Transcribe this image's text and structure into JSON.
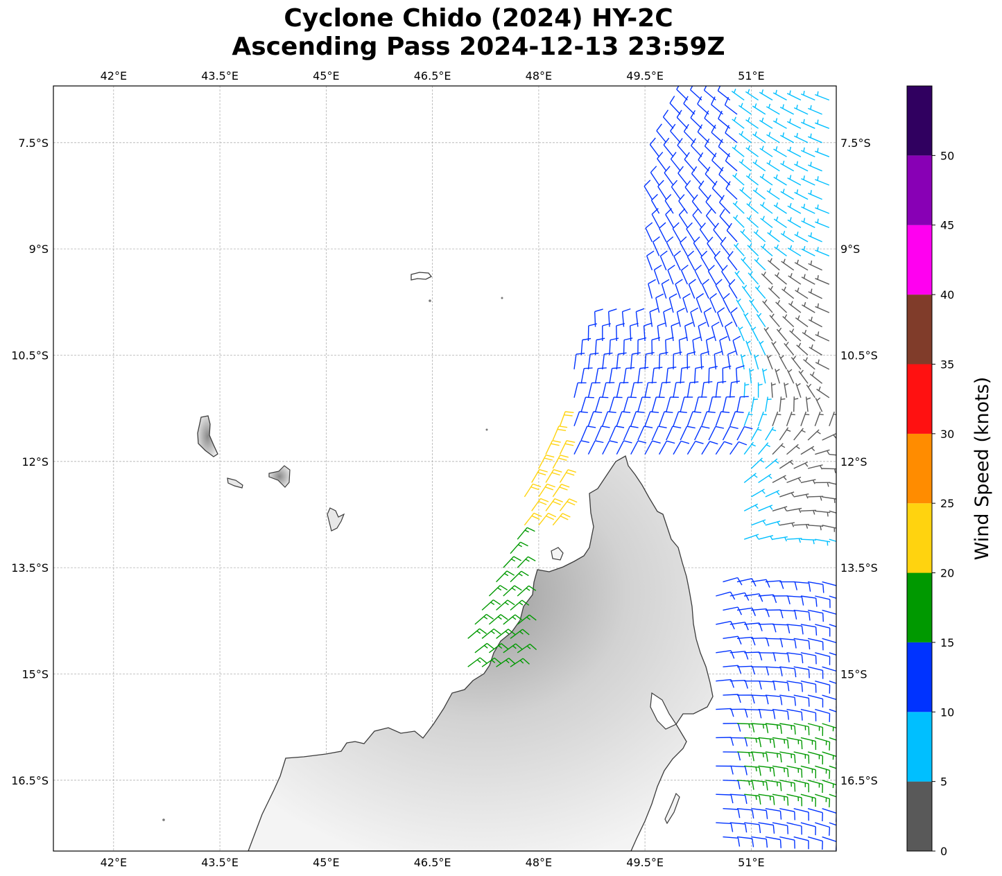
{
  "title": {
    "line1": "Cyclone Chido (2024) HY-2C",
    "line2": "Ascending Pass 2024-12-13 23:59Z"
  },
  "map": {
    "lon_range": [
      41.15,
      52.2
    ],
    "lat_range": [
      -6.7,
      -17.5
    ],
    "lon_ticks": [
      {
        "value": 42.0,
        "label": "42°E"
      },
      {
        "value": 43.5,
        "label": "43.5°E"
      },
      {
        "value": 45.0,
        "label": "45°E"
      },
      {
        "value": 46.5,
        "label": "46.5°E"
      },
      {
        "value": 48.0,
        "label": "48°E"
      },
      {
        "value": 49.5,
        "label": "49.5°E"
      },
      {
        "value": 51.0,
        "label": "51°E"
      }
    ],
    "lat_ticks": [
      {
        "value": -7.5,
        "label": "7.5°S"
      },
      {
        "value": -9.0,
        "label": "9°S"
      },
      {
        "value": -10.5,
        "label": "10.5°S"
      },
      {
        "value": -12.0,
        "label": "12°S"
      },
      {
        "value": -13.5,
        "label": "13.5°S"
      },
      {
        "value": -15.0,
        "label": "15°S"
      },
      {
        "value": -16.5,
        "label": "16.5°S"
      }
    ],
    "gridlines": true,
    "features": [
      "Grande Comore",
      "Mohéli",
      "Anjouan",
      "Mayotte",
      "Aldabra",
      "Madagascar"
    ]
  },
  "colorbar": {
    "label": "Wind Speed (knots)",
    "ticks": [
      0,
      5,
      10,
      15,
      20,
      25,
      30,
      35,
      40,
      45,
      50
    ],
    "vmax": 55,
    "bins": [
      {
        "from": 0,
        "to": 5,
        "color": "#595959"
      },
      {
        "from": 5,
        "to": 10,
        "color": "#00bfff"
      },
      {
        "from": 10,
        "to": 15,
        "color": "#0033ff"
      },
      {
        "from": 15,
        "to": 20,
        "color": "#009900"
      },
      {
        "from": 20,
        "to": 25,
        "color": "#ffd30f"
      },
      {
        "from": 25,
        "to": 30,
        "color": "#ff8c00"
      },
      {
        "from": 30,
        "to": 35,
        "color": "#ff1111"
      },
      {
        "from": 35,
        "to": 40,
        "color": "#803c2a"
      },
      {
        "from": 40,
        "to": 45,
        "color": "#ff00f0"
      },
      {
        "from": 45,
        "to": 50,
        "color": "#8800b5"
      },
      {
        "from": 50,
        "to": 55,
        "color": "#300060"
      }
    ]
  },
  "chart_data": {
    "type": "wind barbs",
    "units": "knots",
    "regions": [
      {
        "lon_min": 49.6,
        "lon_max": 50.9,
        "lat_min": -12.0,
        "lat_max": -6.9,
        "speed": 12
      },
      {
        "lon_min": 50.9,
        "lon_max": 52.2,
        "lat_min": -13.2,
        "lat_max": -6.9,
        "speed": 7
      },
      {
        "lon_min": 51.3,
        "lon_max": 52.2,
        "lat_min": -13.0,
        "lat_max": -9.1,
        "speed": 3
      },
      {
        "lon_min": 48.5,
        "lon_max": 49.6,
        "lat_min": -12.0,
        "lat_max": -10.0,
        "speed": 12
      },
      {
        "lon_min": 47.6,
        "lon_max": 48.4,
        "lat_min": -13.0,
        "lat_max": -11.0,
        "speed": 22
      },
      {
        "lon_min": 46.8,
        "lon_max": 47.8,
        "lat_min": -15.0,
        "lat_max": -13.0,
        "speed": 17
      },
      {
        "lon_min": 50.5,
        "lon_max": 52.2,
        "lat_min": -17.5,
        "lat_max": -13.5,
        "speed": 12
      },
      {
        "lon_min": 50.8,
        "lon_max": 52.2,
        "lat_min": -16.8,
        "lat_max": -15.5,
        "speed": 17
      }
    ]
  }
}
